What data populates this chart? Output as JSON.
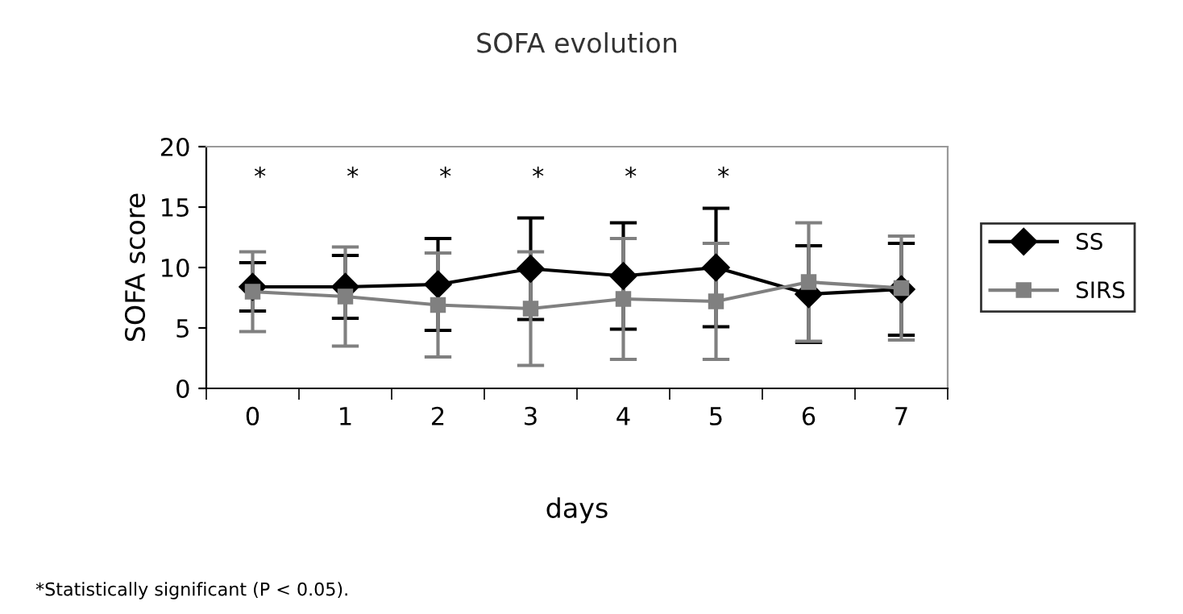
{
  "chart_data": {
    "type": "line",
    "title": "SOFA evolution",
    "xlabel": "days",
    "ylabel": "SOFA score",
    "categories": [
      "0",
      "1",
      "2",
      "3",
      "4",
      "5",
      "6",
      "7"
    ],
    "series": [
      {
        "name": "SS",
        "color": "#000000",
        "marker": "diamond",
        "values": [
          8.4,
          8.4,
          8.6,
          9.9,
          9.3,
          10.0,
          7.8,
          8.2
        ],
        "errors": [
          2.0,
          2.6,
          3.8,
          4.2,
          4.4,
          4.9,
          4.0,
          3.8
        ]
      },
      {
        "name": "SIRS",
        "color": "#808080",
        "marker": "square",
        "values": [
          8.0,
          7.6,
          6.9,
          6.6,
          7.4,
          7.2,
          8.8,
          8.3
        ],
        "errors": [
          3.3,
          4.1,
          4.3,
          4.7,
          5.0,
          4.8,
          4.9,
          4.3
        ]
      }
    ],
    "ylim": [
      0,
      20
    ],
    "yticks": [
      0,
      5,
      10,
      15,
      20
    ],
    "grid": false,
    "legend": "right",
    "line_style": "solid",
    "annotations": [
      "*",
      "*",
      "*",
      "*",
      "*",
      "*",
      "*Statistically significant (P < 0.05)."
    ]
  }
}
